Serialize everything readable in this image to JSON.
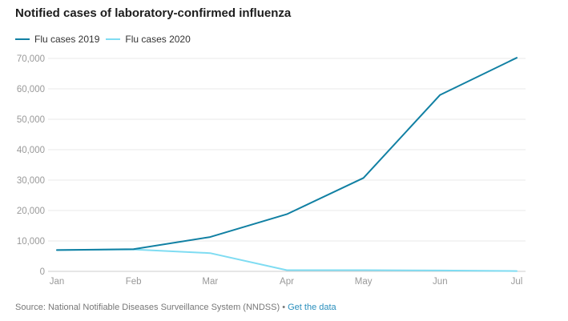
{
  "title": "Notified cases of laboratory-confirmed influenza",
  "source": {
    "text": "Source: National Notifiable Diseases Surveillance System (NNDSS)",
    "separator": " • ",
    "link": "Get the data"
  },
  "chart_data": {
    "type": "line",
    "categories": [
      "Jan",
      "Feb",
      "Mar",
      "Apr",
      "May",
      "Jun",
      "Jul"
    ],
    "series": [
      {
        "name": "Flu cases 2019",
        "color": "#1180a3",
        "values": [
          7000,
          7300,
          11300,
          18800,
          30700,
          58000,
          70200
        ]
      },
      {
        "name": "Flu cases 2020",
        "color": "#7fdcf2",
        "values": [
          7000,
          7200,
          6000,
          400,
          400,
          300,
          100
        ]
      }
    ],
    "yticks": [
      "0",
      "10,000",
      "20,000",
      "30,000",
      "40,000",
      "50,000",
      "60,000",
      "70,000"
    ],
    "ylim": [
      0,
      70000
    ],
    "grid": true,
    "legend_position": "top-left"
  }
}
